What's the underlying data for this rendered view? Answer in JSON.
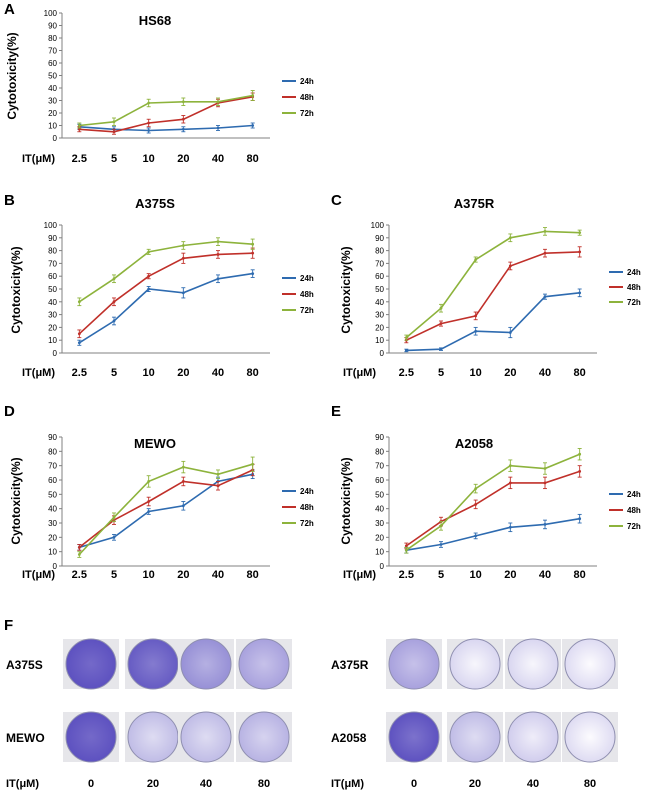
{
  "chart_data": [
    {
      "panel": "A",
      "type": "line",
      "title": "HS68",
      "ylabel": "Cytotoxicity(%)",
      "xlabel": "IT(μM)",
      "categories": [
        "2.5",
        "5",
        "10",
        "20",
        "40",
        "80"
      ],
      "ylim": [
        0,
        100
      ],
      "yticks": [
        0,
        10,
        20,
        30,
        40,
        50,
        60,
        70,
        80,
        90,
        100
      ],
      "legend": "right",
      "series": [
        {
          "name": "24h",
          "color": "#2e6bb0",
          "values": [
            9,
            7,
            6,
            7,
            8,
            10
          ],
          "errors": [
            2,
            2,
            2,
            2,
            2,
            2
          ]
        },
        {
          "name": "48h",
          "color": "#c0302a",
          "values": [
            7,
            5,
            12,
            15,
            28,
            33
          ],
          "errors": [
            2,
            2,
            3,
            3,
            3,
            3
          ]
        },
        {
          "name": "72h",
          "color": "#8db33c",
          "values": [
            10,
            13,
            28,
            29,
            29,
            34
          ],
          "errors": [
            2,
            3,
            3,
            3,
            3,
            4
          ]
        }
      ]
    },
    {
      "panel": "B",
      "type": "line",
      "title": "A375S",
      "ylabel": "Cytotoxicity(%)",
      "xlabel": "IT(μM)",
      "categories": [
        "2.5",
        "5",
        "10",
        "20",
        "40",
        "80"
      ],
      "ylim": [
        0,
        100
      ],
      "yticks": [
        0,
        10,
        20,
        30,
        40,
        50,
        60,
        70,
        80,
        90,
        100
      ],
      "legend": "right",
      "series": [
        {
          "name": "24h",
          "color": "#2e6bb0",
          "values": [
            8,
            25,
            50,
            47,
            58,
            62
          ],
          "errors": [
            2,
            3,
            2,
            4,
            3,
            3
          ]
        },
        {
          "name": "48h",
          "color": "#c0302a",
          "values": [
            15,
            40,
            60,
            74,
            77,
            78
          ],
          "errors": [
            3,
            3,
            2,
            4,
            3,
            4
          ]
        },
        {
          "name": "72h",
          "color": "#8db33c",
          "values": [
            40,
            58,
            79,
            84,
            87,
            85
          ],
          "errors": [
            3,
            3,
            2,
            3,
            3,
            4
          ]
        }
      ]
    },
    {
      "panel": "C",
      "type": "line",
      "title": "A375R",
      "ylabel": "Cytotoxicity(%)",
      "xlabel": "IT(μM)",
      "categories": [
        "2.5",
        "5",
        "10",
        "20",
        "40",
        "80"
      ],
      "ylim": [
        0,
        100
      ],
      "yticks": [
        0,
        10,
        20,
        30,
        40,
        50,
        60,
        70,
        80,
        90,
        100
      ],
      "legend": "right",
      "series": [
        {
          "name": "24h",
          "color": "#2e6bb0",
          "values": [
            2,
            3,
            17,
            16,
            44,
            47
          ],
          "errors": [
            1,
            1,
            3,
            4,
            2,
            3
          ]
        },
        {
          "name": "48h",
          "color": "#c0302a",
          "values": [
            10,
            23,
            29,
            68,
            78,
            79
          ],
          "errors": [
            2,
            2,
            3,
            3,
            3,
            4
          ]
        },
        {
          "name": "72h",
          "color": "#8db33c",
          "values": [
            12,
            35,
            73,
            90,
            95,
            94
          ],
          "errors": [
            2,
            3,
            2,
            3,
            3,
            2
          ]
        }
      ]
    },
    {
      "panel": "D",
      "type": "line",
      "title": "MEWO",
      "ylabel": "Cytotoxicity(%)",
      "xlabel": "IT(μM)",
      "categories": [
        "2.5",
        "5",
        "10",
        "20",
        "40",
        "80"
      ],
      "ylim": [
        0,
        90
      ],
      "yticks": [
        0,
        10,
        20,
        30,
        40,
        50,
        60,
        70,
        80,
        90
      ],
      "legend": "right",
      "series": [
        {
          "name": "24h",
          "color": "#2e6bb0",
          "values": [
            13,
            20,
            38,
            42,
            59,
            64
          ],
          "errors": [
            2,
            2,
            2,
            3,
            3,
            3
          ]
        },
        {
          "name": "48h",
          "color": "#c0302a",
          "values": [
            13,
            32,
            45,
            59,
            56,
            67
          ],
          "errors": [
            2,
            3,
            3,
            3,
            3,
            4
          ]
        },
        {
          "name": "72h",
          "color": "#8db33c",
          "values": [
            8,
            34,
            59,
            69,
            64,
            71
          ],
          "errors": [
            2,
            3,
            4,
            4,
            3,
            5
          ]
        }
      ]
    },
    {
      "panel": "E",
      "type": "line",
      "title": "A2058",
      "ylabel": "Cytotoxicity(%)",
      "xlabel": "IT(μM)",
      "categories": [
        "2.5",
        "5",
        "10",
        "20",
        "40",
        "80"
      ],
      "ylim": [
        0,
        90
      ],
      "yticks": [
        0,
        10,
        20,
        30,
        40,
        50,
        60,
        70,
        80,
        90
      ],
      "legend": "right",
      "series": [
        {
          "name": "24h",
          "color": "#2e6bb0",
          "values": [
            11,
            15,
            21,
            27,
            29,
            33
          ],
          "errors": [
            2,
            2,
            2,
            3,
            3,
            3
          ]
        },
        {
          "name": "48h",
          "color": "#c0302a",
          "values": [
            14,
            31,
            43,
            58,
            58,
            66
          ],
          "errors": [
            2,
            3,
            3,
            4,
            4,
            4
          ]
        },
        {
          "name": "72h",
          "color": "#8db33c",
          "values": [
            11,
            28,
            54,
            70,
            68,
            78
          ],
          "errors": [
            2,
            3,
            3,
            4,
            4,
            4
          ]
        }
      ]
    }
  ],
  "panel_f": {
    "letter": "F",
    "groups": [
      {
        "side": "left",
        "rows": [
          {
            "label": "A375S",
            "intensity": [
              0.95,
              0.85,
              0.55,
              0.45
            ]
          },
          {
            "label": "MEWO",
            "intensity": [
              0.95,
              0.3,
              0.3,
              0.35
            ]
          }
        ]
      },
      {
        "side": "right",
        "rows": [
          {
            "label": "A375R",
            "intensity": [
              0.45,
              0.15,
              0.15,
              0.12
            ]
          },
          {
            "label": "A2058",
            "intensity": [
              0.9,
              0.3,
              0.2,
              0.12
            ]
          }
        ]
      }
    ],
    "xlabel": "IT(μM)",
    "doses": [
      "0",
      "20",
      "40",
      "80"
    ],
    "dish_color": "#5b4fbf"
  }
}
